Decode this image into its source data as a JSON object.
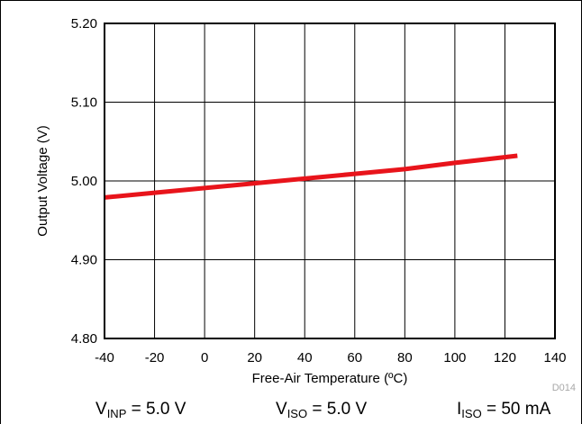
{
  "chart_data": {
    "type": "line",
    "title": "",
    "xlabel": "Free-Air Temperature (ºC)",
    "ylabel": "Output Voltage (V)",
    "xlim": [
      -40,
      140
    ],
    "ylim": [
      4.8,
      5.2
    ],
    "x_ticks": [
      -40,
      -20,
      0,
      20,
      40,
      60,
      80,
      100,
      120,
      140
    ],
    "x_tick_labels": [
      "-40",
      "-20",
      "0",
      "20",
      "40",
      "60",
      "80",
      "100",
      "120",
      "140"
    ],
    "y_ticks": [
      4.8,
      4.9,
      5.0,
      5.1,
      5.2
    ],
    "y_tick_labels": [
      "4.80",
      "4.90",
      "5.00",
      "5.10",
      "5.20"
    ],
    "grid": true,
    "legend": "none",
    "series_color": "#e8141b",
    "series": [
      {
        "x": [
          -40,
          -20,
          0,
          20,
          40,
          60,
          80,
          100,
          125
        ],
        "y": [
          4.979,
          4.985,
          4.991,
          4.997,
          5.003,
          5.009,
          5.015,
          5.023,
          5.032
        ]
      }
    ],
    "figure_code": "D014"
  },
  "conditions": [
    {
      "main": "V",
      "sub": "INP",
      "rest": " = 5.0 V"
    },
    {
      "main": "V",
      "sub": "ISO",
      "rest": " = 5.0 V"
    },
    {
      "main": "I",
      "sub": "ISO",
      "rest": " = 50 mA"
    }
  ]
}
